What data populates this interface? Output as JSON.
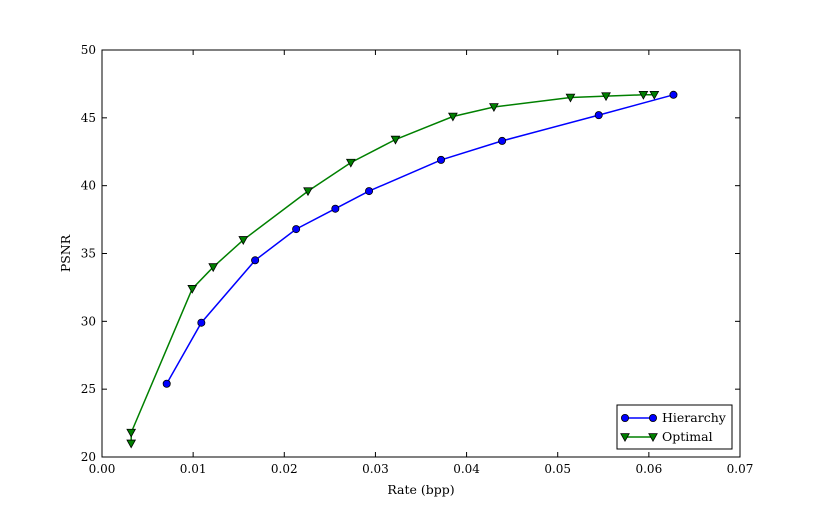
{
  "chart_data": {
    "type": "line",
    "title": "",
    "xlabel": "Rate (bpp)",
    "ylabel": "PSNR",
    "xlim": [
      0.0,
      0.07
    ],
    "ylim": [
      20,
      50
    ],
    "xticks": [
      0.0,
      0.01,
      0.02,
      0.03,
      0.04,
      0.05,
      0.06,
      0.07
    ],
    "xtick_labels": [
      "0.00",
      "0.01",
      "0.02",
      "0.03",
      "0.04",
      "0.05",
      "0.06",
      "0.07"
    ],
    "yticks": [
      20,
      25,
      30,
      35,
      40,
      45,
      50
    ],
    "ytick_labels": [
      "20",
      "25",
      "30",
      "35",
      "40",
      "45",
      "50"
    ],
    "grid": false,
    "legend_position": "bottom-right",
    "series": [
      {
        "name": "Hierarchy",
        "color": "#0000ff",
        "marker": "circle",
        "x": [
          0.0071,
          0.0109,
          0.0168,
          0.0213,
          0.0256,
          0.0293,
          0.0372,
          0.0439,
          0.0545,
          0.0627
        ],
        "y": [
          25.4,
          29.9,
          34.5,
          36.8,
          38.3,
          39.6,
          41.9,
          43.3,
          45.2,
          46.7
        ]
      },
      {
        "name": "Optimal",
        "color": "#008000",
        "marker": "triangle-down",
        "x": [
          0.0032,
          0.0032,
          0.0099,
          0.0122,
          0.0155,
          0.0226,
          0.0273,
          0.0322,
          0.0385,
          0.043,
          0.0514,
          0.0553,
          0.0594,
          0.0606
        ],
        "y": [
          21.0,
          21.8,
          32.4,
          34.0,
          36.0,
          39.6,
          41.7,
          43.4,
          45.1,
          45.8,
          46.5,
          46.6,
          46.7,
          46.7
        ]
      }
    ]
  }
}
